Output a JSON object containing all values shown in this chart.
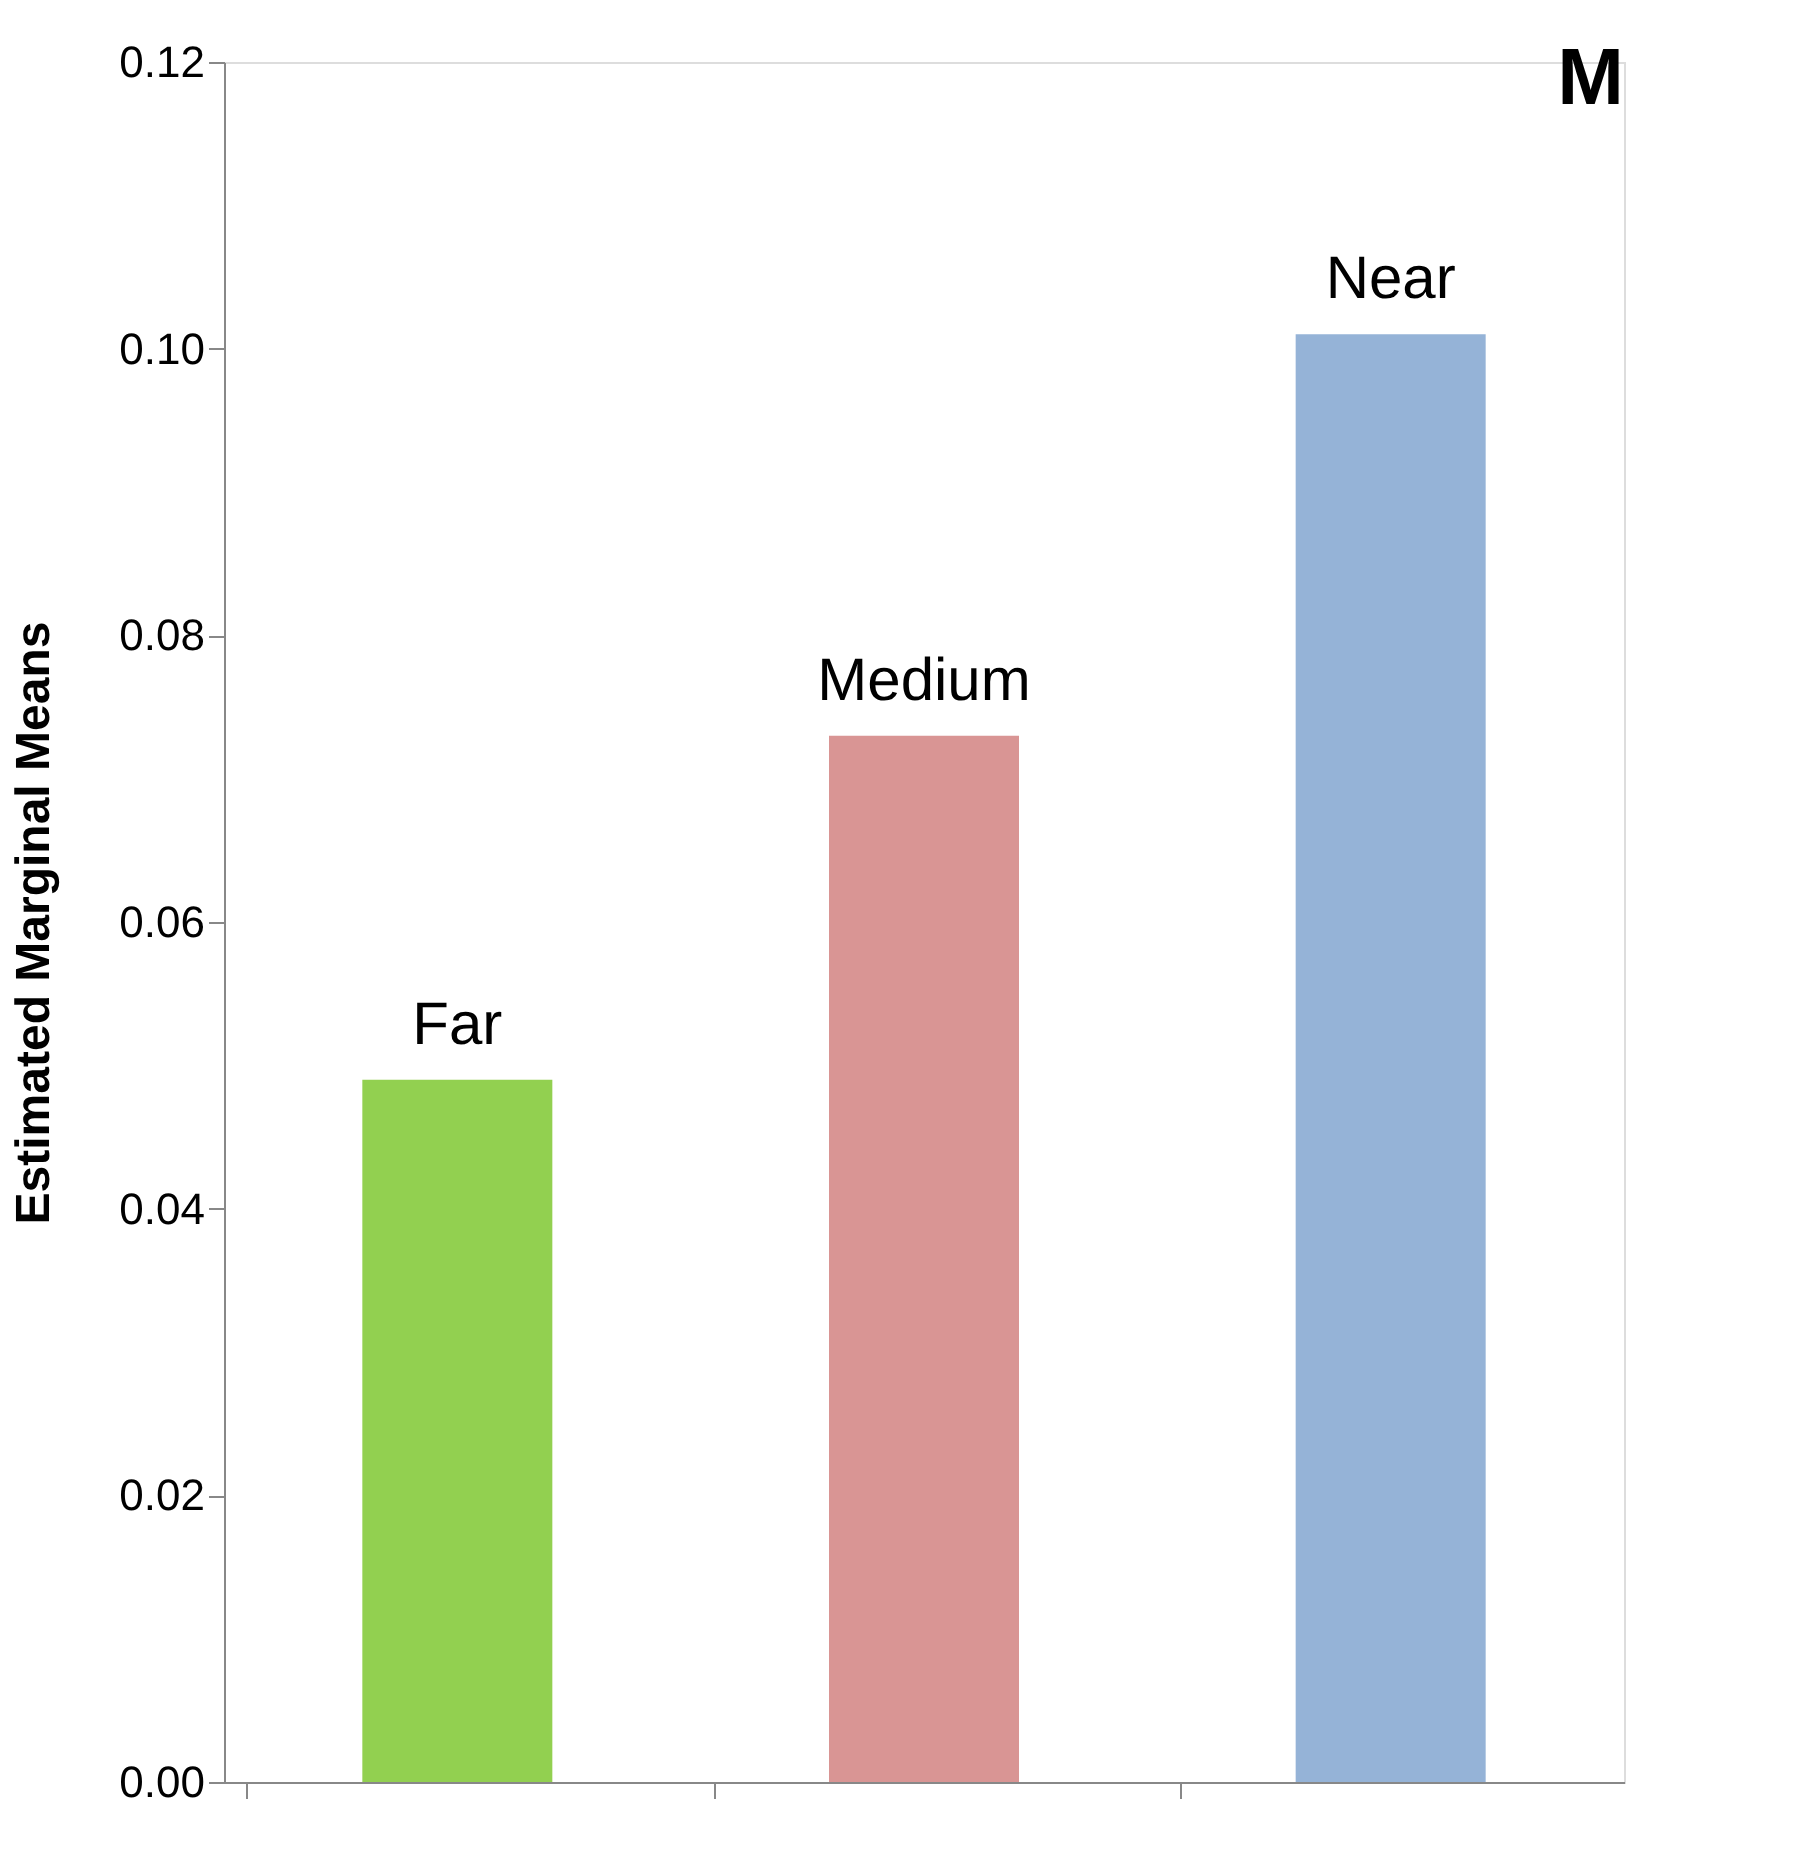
{
  "chart_data": {
    "type": "bar",
    "title": "M",
    "ylabel": "Estimated Marginal Means",
    "categories": [
      "Far",
      "Medium",
      "Near"
    ],
    "values": [
      0.049,
      0.073,
      0.101
    ],
    "colors": [
      "#92d050",
      "#d99594",
      "#95b3d7"
    ],
    "ylim": [
      0,
      0.12
    ],
    "yticks": [
      {
        "value": 0,
        "label": "0.00"
      },
      {
        "value": 0.02,
        "label": "0.02"
      },
      {
        "value": 0.04,
        "label": "0.04"
      },
      {
        "value": 0.06,
        "label": "0.06"
      },
      {
        "value": 0.08,
        "label": "0.08"
      },
      {
        "value": 0.1,
        "label": "0.10"
      },
      {
        "value": 0.12,
        "label": "0.12"
      }
    ],
    "grid": false,
    "tick_labels": "y"
  }
}
